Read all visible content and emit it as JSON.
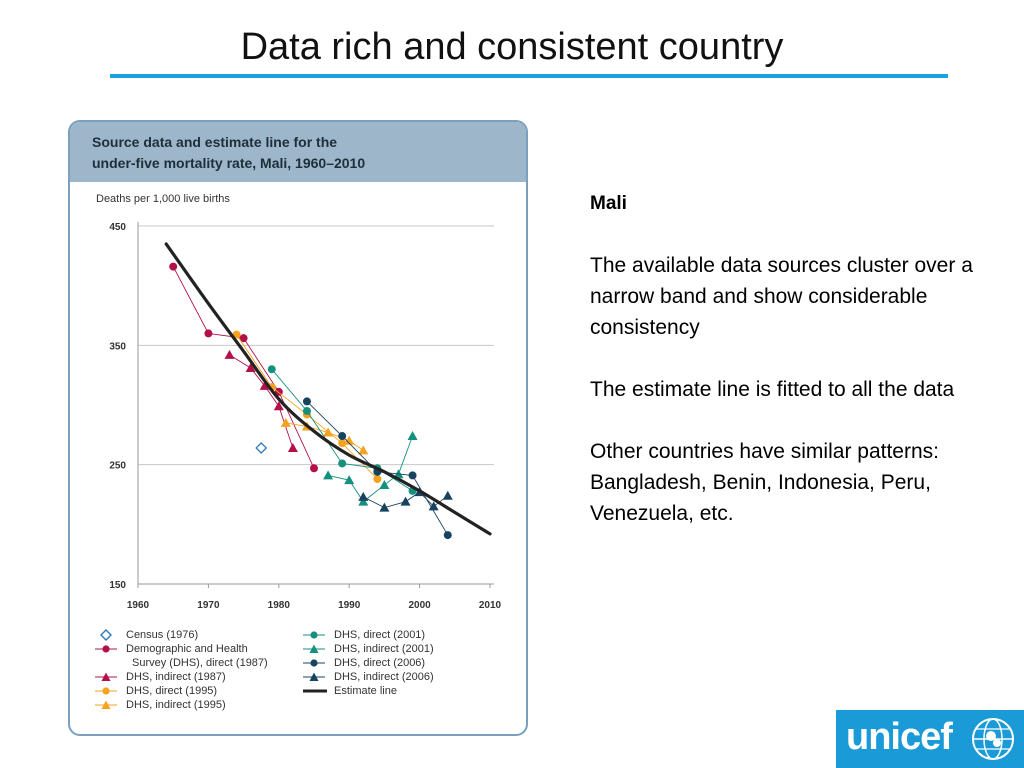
{
  "slide": {
    "title": "Data rich and consistent country"
  },
  "notes": {
    "country": "Mali",
    "paragraphs": [
      "The available data sources cluster over a narrow band and show considerable consistency",
      "The estimate line is fitted to all the data",
      "Other countries have similar patterns:  Bangladesh, Benin, Indonesia, Peru, Venezuela, etc."
    ]
  },
  "logo": {
    "text": "unicef",
    "color": "#1a9ad6"
  },
  "chart_data": {
    "type": "scatter",
    "title": "Source data and estimate line for the under-five mortality rate, Mali, 1960–2010",
    "title_lines": [
      "Source data and estimate line for the",
      "under-five mortality rate, Mali, 1960–2010"
    ],
    "ylabel": "Deaths per 1,000 live births",
    "xlim": [
      1960,
      2010
    ],
    "ylim": [
      150,
      450
    ],
    "xticks": [
      1960,
      1970,
      1980,
      1990,
      2000,
      2010
    ],
    "yticks": [
      150,
      250,
      350,
      450
    ],
    "grid": true,
    "legend_placement": "bottom",
    "series": [
      {
        "name": "Census (1976)",
        "marker": "diamond-open",
        "color": "#2a7ab8",
        "connected": false,
        "points": [
          [
            1977.5,
            264
          ]
        ]
      },
      {
        "name": "Demographic and Health Survey (DHS), direct (1987)",
        "legend_lines": [
          "Demographic and Health",
          "Survey (DHS), direct (1987)"
        ],
        "marker": "circle",
        "color": "#b3104a",
        "connected": true,
        "points": [
          [
            1965,
            416
          ],
          [
            1970,
            360
          ],
          [
            1975,
            356
          ],
          [
            1980,
            311
          ],
          [
            1985,
            247
          ]
        ]
      },
      {
        "name": "DHS, indirect (1987)",
        "marker": "triangle",
        "color": "#b3104a",
        "connected": true,
        "points": [
          [
            1973,
            342
          ],
          [
            1976,
            331
          ],
          [
            1978,
            316
          ],
          [
            1980,
            299
          ],
          [
            1982,
            264
          ]
        ]
      },
      {
        "name": "DHS, direct (1995)",
        "marker": "circle",
        "color": "#f5a21e",
        "connected": true,
        "points": [
          [
            1974,
            359
          ],
          [
            1979,
            315
          ],
          [
            1984,
            292
          ],
          [
            1989,
            268
          ],
          [
            1994,
            238
          ]
        ]
      },
      {
        "name": "DHS, indirect (1995)",
        "marker": "triangle",
        "color": "#f5a21e",
        "connected": true,
        "points": [
          [
            1981,
            285
          ],
          [
            1984,
            282
          ],
          [
            1987,
            277
          ],
          [
            1990,
            270
          ],
          [
            1992,
            262
          ]
        ]
      },
      {
        "name": "DHS, direct (2001)",
        "marker": "circle",
        "color": "#15907f",
        "connected": true,
        "points": [
          [
            1979,
            330
          ],
          [
            1984,
            295
          ],
          [
            1989,
            251
          ],
          [
            1994,
            247
          ],
          [
            1999,
            228
          ]
        ]
      },
      {
        "name": "DHS, indirect (2001)",
        "marker": "triangle",
        "color": "#15907f",
        "connected": true,
        "points": [
          [
            1987,
            241
          ],
          [
            1990,
            237
          ],
          [
            1992,
            219
          ],
          [
            1995,
            233
          ],
          [
            1997,
            242
          ],
          [
            1999,
            274
          ]
        ]
      },
      {
        "name": "DHS, direct (2006)",
        "marker": "circle",
        "color": "#18435f",
        "connected": true,
        "points": [
          [
            1984,
            303
          ],
          [
            1989,
            274
          ],
          [
            1994,
            244
          ],
          [
            1999,
            241
          ],
          [
            2004,
            191
          ]
        ]
      },
      {
        "name": "DHS, indirect (2006)",
        "marker": "triangle",
        "color": "#18435f",
        "connected": true,
        "points": [
          [
            1992,
            223
          ],
          [
            1995,
            214
          ],
          [
            1998,
            219
          ],
          [
            2000,
            227
          ],
          [
            2002,
            215
          ],
          [
            2004,
            224
          ]
        ]
      }
    ],
    "estimate_line": {
      "name": "Estimate line",
      "color": "#222222",
      "points": [
        [
          1964,
          435
        ],
        [
          1970,
          385
        ],
        [
          1975,
          345
        ],
        [
          1980,
          305
        ],
        [
          1985,
          278
        ],
        [
          1990,
          258
        ],
        [
          1995,
          244
        ],
        [
          2000,
          228
        ],
        [
          2005,
          210
        ],
        [
          2010,
          192
        ]
      ]
    }
  }
}
